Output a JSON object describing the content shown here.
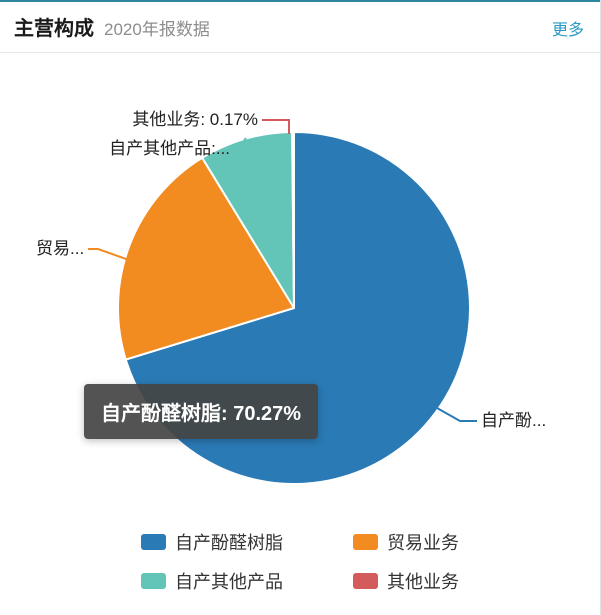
{
  "header": {
    "title": "主营构成",
    "subtitle": "2020年报数据",
    "more_label": "更多"
  },
  "colors": {
    "accent_link": "#2a9ac4",
    "top_bar": "#2e86a0",
    "tooltip_bg": "#444444"
  },
  "chart_data": {
    "type": "pie",
    "title": "主营构成",
    "subtitle": "2020年报数据",
    "legend_position": "bottom",
    "series": [
      {
        "name": "自产酚醛树脂",
        "value": 70.27,
        "color": "#2a7ab5",
        "callout": "自产酚..."
      },
      {
        "name": "贸易业务",
        "value": 21.0,
        "color": "#f28b20",
        "callout": "贸易..."
      },
      {
        "name": "自产其他产品",
        "value": 8.56,
        "color": "#62c5b8",
        "callout": "自产其他产品:..."
      },
      {
        "name": "其他业务",
        "value": 0.17,
        "color": "#d35b5b",
        "callout": "其他业务: 0.17%"
      }
    ],
    "tooltip": "自产酚醛树脂: 70.27%"
  }
}
